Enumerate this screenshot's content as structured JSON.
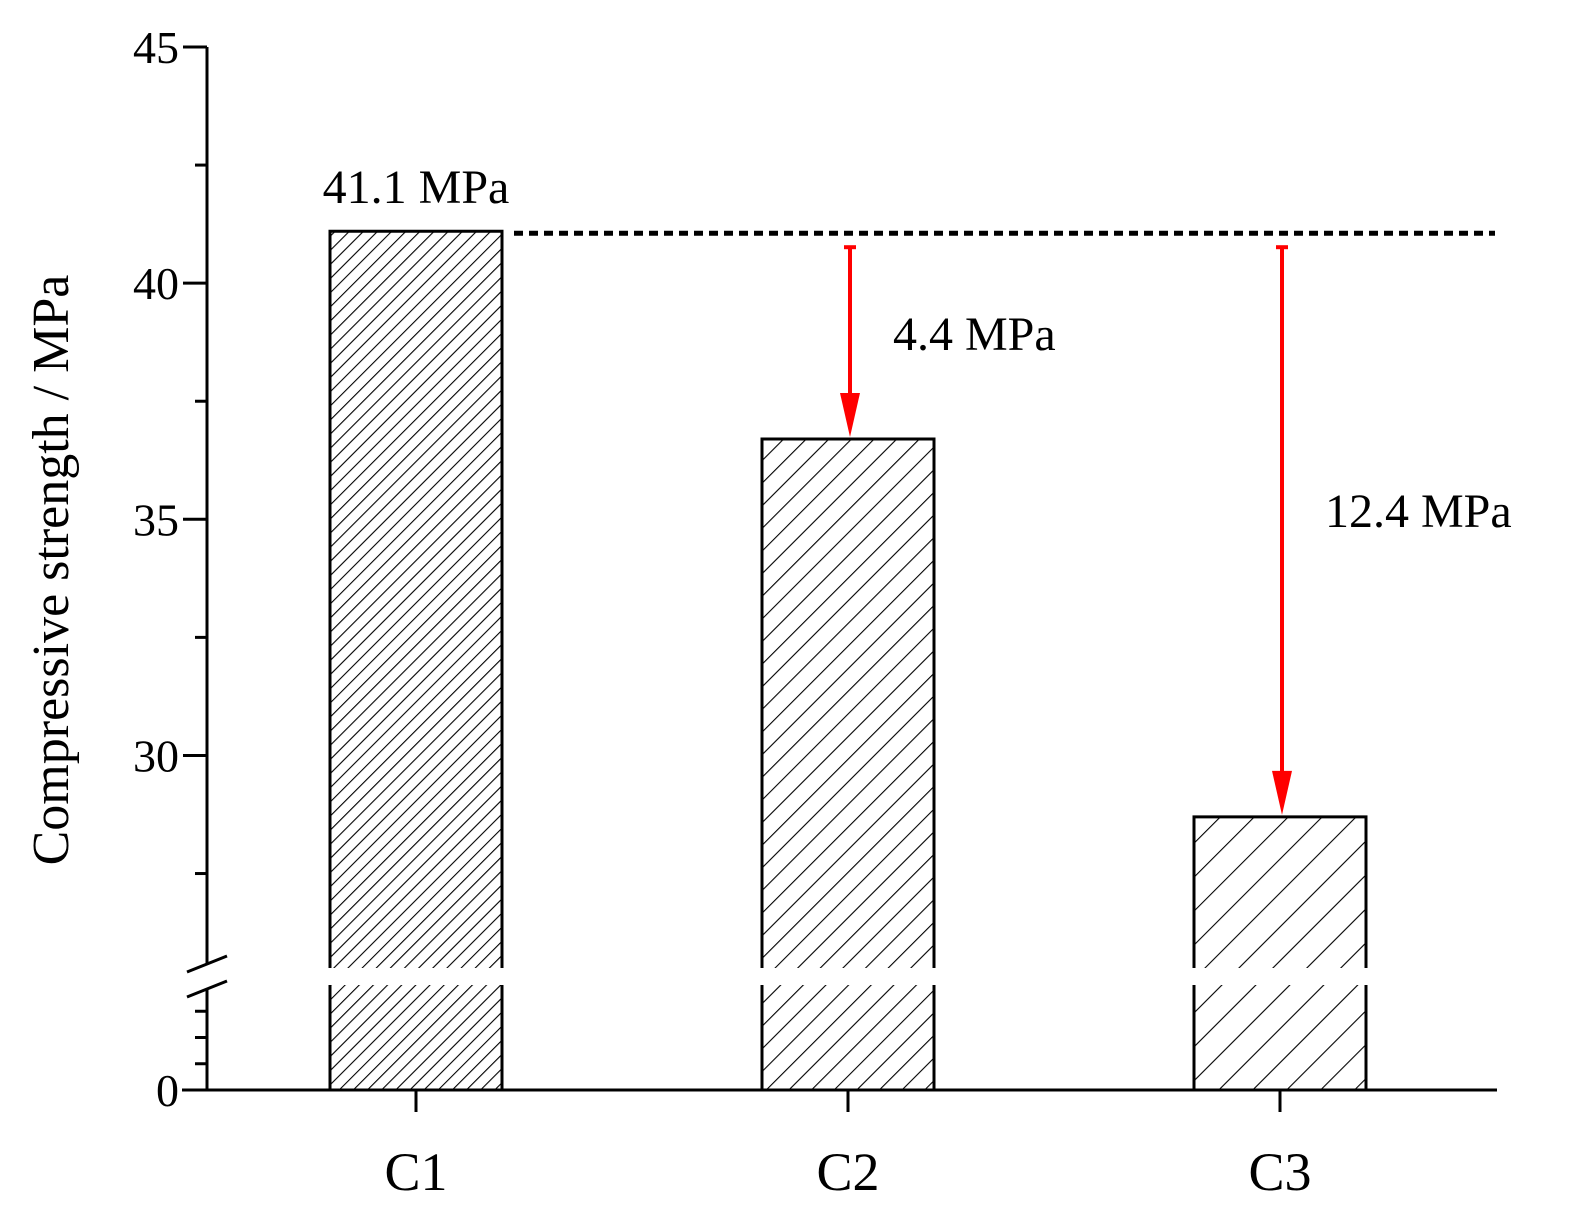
{
  "chart_data": {
    "type": "bar",
    "categories": [
      "C1",
      "C2",
      "C3"
    ],
    "values": [
      41.1,
      36.7,
      28.7
    ],
    "title": "",
    "xlabel": "",
    "ylabel": "Compressive strength / MPa",
    "ylim_upper": [
      25.5,
      45
    ],
    "ylim_lower": [
      0,
      1
    ],
    "axis_break": true,
    "yticks_labeled": [
      0,
      30,
      35,
      40,
      45
    ],
    "yticks_labeled_text": [
      "0",
      "30",
      "35",
      "40",
      "45"
    ],
    "reference_line": {
      "value": 41.1,
      "style": "dotted"
    },
    "annotations": [
      {
        "text": "41.1 MPa",
        "target": "C1"
      },
      {
        "text": "4.4 MPa",
        "target": "C2",
        "from": 41.1,
        "to": 36.7
      },
      {
        "text": "12.4 MPa",
        "target": "C3",
        "from": 41.1,
        "to": 28.7
      }
    ],
    "colors": {
      "bar_edge": "#000000",
      "hatch": "#000000",
      "arrow": "#ff0000",
      "reference": "#000000"
    }
  }
}
